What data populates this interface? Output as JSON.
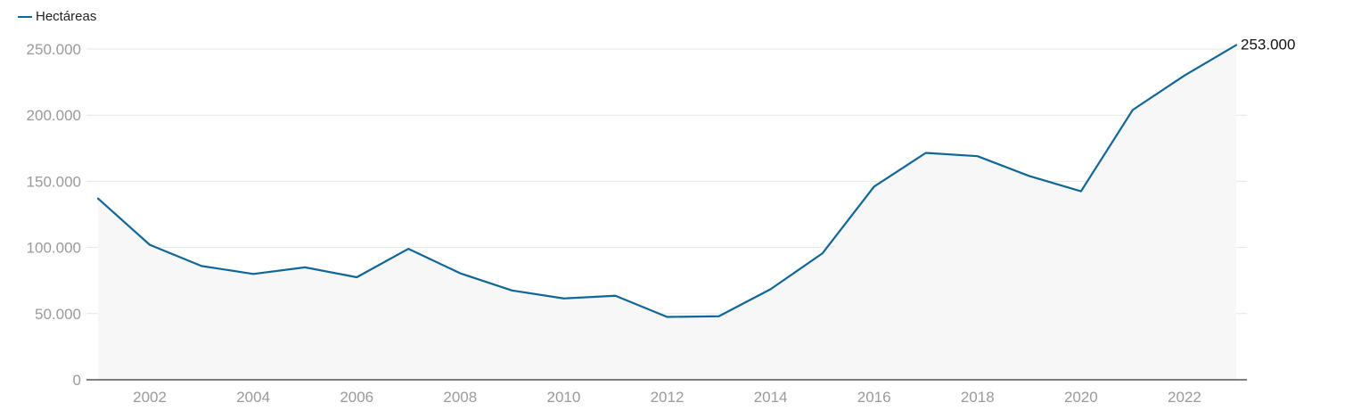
{
  "chart_data": {
    "type": "area",
    "title": "",
    "xlabel": "",
    "ylabel": "",
    "legend": [
      {
        "name": "Hectáreas",
        "color": "#0f6698"
      }
    ],
    "x": [
      2001,
      2002,
      2003,
      2004,
      2005,
      2006,
      2007,
      2008,
      2009,
      2010,
      2011,
      2012,
      2013,
      2014,
      2015,
      2016,
      2017,
      2018,
      2019,
      2020,
      2021,
      2022,
      2023
    ],
    "series": [
      {
        "name": "Hectáreas",
        "values": [
          137000,
          102000,
          86000,
          80000,
          85000,
          77500,
          99000,
          80500,
          67500,
          61500,
          63500,
          47500,
          48000,
          68500,
          95500,
          146000,
          171500,
          169000,
          154000,
          142500,
          204000,
          230000,
          253000
        ]
      }
    ],
    "xlim": [
      2001,
      2023
    ],
    "ylim": [
      0,
      250000
    ],
    "x_ticks": [
      2002,
      2004,
      2006,
      2008,
      2010,
      2012,
      2014,
      2016,
      2018,
      2020,
      2022
    ],
    "y_ticks": [
      0,
      50000,
      100000,
      150000,
      200000,
      250000
    ],
    "y_tick_labels": [
      "0",
      "50.000",
      "100.000",
      "150.000",
      "200.000",
      "250.000"
    ],
    "end_label": "253.000",
    "grid": true,
    "legend_position": "top-left",
    "colors": {
      "line": "#0f6698",
      "area": "#f7f7f7",
      "grid": "#e6e6e6",
      "axis": "#333333"
    }
  }
}
